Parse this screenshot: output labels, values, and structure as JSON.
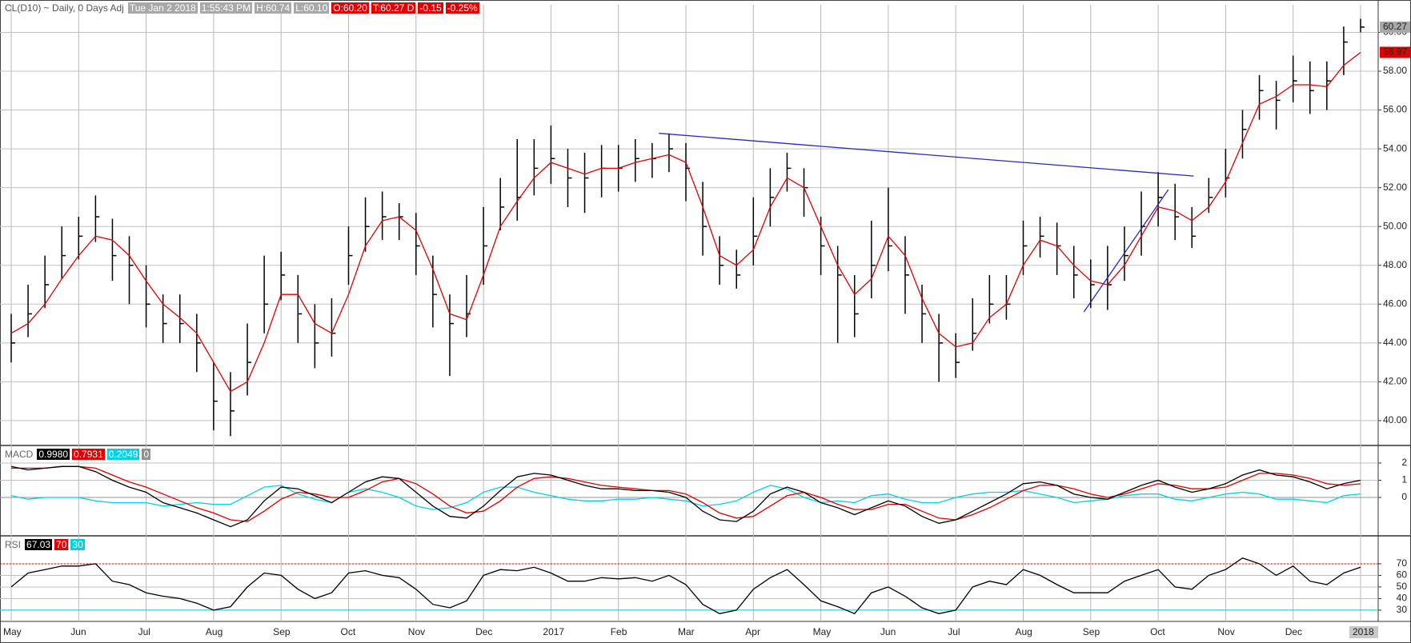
{
  "chart_data": [
    {
      "type": "ohlc",
      "title": "CL(D10) ~ Daily, 0 Days Adj",
      "info": [
        "Tue Jan 2 2018",
        "1:55:43 PM",
        "H:60.74",
        "L:60.10",
        "O:60.20",
        "T:60.27 D",
        "-0.15",
        "-0.25%"
      ],
      "categories": [
        "May",
        null,
        null,
        null,
        "Jun",
        null,
        null,
        null,
        "Jul",
        null,
        null,
        null,
        "Aug",
        null,
        null,
        null,
        "Sep",
        null,
        null,
        null,
        "Oct",
        null,
        null,
        null,
        "Nov",
        null,
        null,
        null,
        "Dec",
        null,
        null,
        null,
        "2017",
        null,
        null,
        null,
        "Feb",
        null,
        null,
        null,
        "Mar",
        null,
        null,
        null,
        "Apr",
        null,
        null,
        null,
        "May",
        null,
        null,
        null,
        "Jun",
        null,
        null,
        null,
        "Jul",
        null,
        null,
        null,
        "Aug",
        null,
        null,
        null,
        "Sep",
        null,
        null,
        null,
        "Oct",
        null,
        null,
        null,
        "Nov",
        null,
        null,
        null,
        "Dec",
        null,
        null,
        null,
        "2018"
      ],
      "high": [
        45.5,
        47,
        48.5,
        50,
        50.5,
        51.6,
        50.4,
        49.5,
        48,
        46.5,
        46.5,
        45.5,
        43,
        42.5,
        45,
        48.5,
        48.7,
        47.5,
        46,
        46.3,
        50,
        51.5,
        51.8,
        51.2,
        50.7,
        48.5,
        46.5,
        47.5,
        51,
        52.5,
        54.5,
        54.5,
        55.2,
        54,
        53.8,
        54.2,
        54.2,
        54.5,
        54.3,
        54.8,
        54.3,
        52.3,
        49.5,
        48.8,
        51.5,
        53,
        53.8,
        53,
        50.5,
        49,
        47.5,
        50.3,
        52,
        49.5,
        47,
        45.5,
        44.5,
        46.3,
        47.5,
        47.5,
        50.3,
        50.5,
        50.2,
        49,
        48.3,
        49,
        50,
        51.8,
        52.8,
        52.2,
        51,
        52.5,
        54,
        56,
        57.8,
        57.5,
        58.8,
        58.5,
        58.5,
        60.3,
        60.7
      ],
      "low": [
        43,
        44.3,
        45.8,
        47.3,
        48.3,
        49.2,
        47.2,
        46,
        44.8,
        44,
        44,
        42.5,
        39.5,
        39.2,
        41.3,
        44.5,
        46.2,
        44,
        42.7,
        43.3,
        47,
        48.7,
        49.3,
        49.3,
        47.5,
        44.8,
        42.3,
        44.3,
        47,
        49.8,
        50.3,
        51.6,
        52.2,
        51,
        50.7,
        51.5,
        51.8,
        52.3,
        52.5,
        52.8,
        51.3,
        48.5,
        47,
        46.8,
        48,
        50,
        51.8,
        50.5,
        47.5,
        44,
        44.3,
        46.3,
        47.7,
        45.5,
        44,
        42,
        42.2,
        43.6,
        45,
        45.2,
        47.5,
        48.4,
        47.5,
        46.3,
        45.8,
        45.7,
        47.2,
        48.5,
        50,
        49.3,
        48.9,
        50.7,
        51.5,
        53.5,
        55.5,
        55,
        56.4,
        55.8,
        56,
        57.8,
        60
      ],
      "close": [
        44,
        45.5,
        47,
        48.5,
        49.5,
        50.5,
        48.5,
        48,
        46,
        45,
        45,
        44,
        41,
        40.5,
        43,
        46,
        47.5,
        45.5,
        44,
        44.5,
        48.5,
        50,
        50.5,
        50.5,
        49,
        46.5,
        45,
        45.5,
        49,
        51,
        51.5,
        53,
        53.5,
        52.5,
        52.5,
        53,
        53,
        53.5,
        53.5,
        54,
        53,
        50,
        48,
        47.5,
        49.5,
        51.5,
        53,
        52,
        49,
        47.5,
        45.5,
        48,
        49,
        47.5,
        45.5,
        44,
        43,
        44.5,
        46,
        46,
        49,
        49.5,
        49,
        47.5,
        47,
        47,
        48.5,
        50,
        51.5,
        50.5,
        49.5,
        51.5,
        52.5,
        55,
        57,
        56.5,
        57.5,
        57,
        57.5,
        59.5,
        60.27
      ],
      "color": "#000000",
      "overlay": {
        "color": "#e00000",
        "values": [
          44.5,
          45,
          46,
          47.3,
          48.5,
          49.5,
          49.3,
          48.5,
          47.2,
          46,
          45.3,
          44.5,
          43,
          41.5,
          42,
          44,
          46.5,
          46.5,
          45,
          44.5,
          46.5,
          49,
          50.3,
          50.5,
          49.8,
          47.8,
          45.5,
          45.2,
          47.5,
          50,
          51.3,
          52.5,
          53.3,
          53,
          52.7,
          53,
          53,
          53.3,
          53.5,
          53.7,
          53.3,
          51,
          48.5,
          48,
          48.8,
          51,
          52.5,
          52,
          50,
          48,
          46.5,
          47.3,
          49.5,
          48.5,
          46.3,
          44.5,
          43.8,
          44,
          45.3,
          46,
          48,
          49.3,
          49,
          48,
          47.2,
          47,
          48,
          49.5,
          51,
          50.8,
          50.3,
          51,
          52.3,
          54.3,
          56.3,
          56.7,
          57.3,
          57.3,
          57.2,
          58.3,
          58.97
        ]
      },
      "trendlines": [
        {
          "color": "#2828c8",
          "x": [
            38.4,
            70.1
          ],
          "y": [
            54.8,
            52.6
          ]
        },
        {
          "color": "#2828c8",
          "x": [
            63.6,
            68.6
          ],
          "y": [
            45.6,
            51.9
          ]
        }
      ],
      "ylim": [
        38.72,
        61.42
      ],
      "yticks": [
        {
          "value": 40,
          "label": "40.00"
        },
        {
          "value": 42,
          "label": "42.00"
        },
        {
          "value": 44,
          "label": "44.00"
        },
        {
          "value": 46,
          "label": "46.00"
        },
        {
          "value": 48,
          "label": "48.00"
        },
        {
          "value": 50,
          "label": "50.00"
        },
        {
          "value": 52,
          "label": "52.00"
        },
        {
          "value": 54,
          "label": "54.00"
        },
        {
          "value": 56,
          "label": "56.00"
        },
        {
          "value": 58,
          "label": "58.00"
        },
        {
          "value": 60,
          "label": "60.00"
        }
      ],
      "grid": true
    },
    {
      "type": "line",
      "title": "MACD",
      "series": [
        {
          "name": "0.9980",
          "color": "#000000",
          "values": [
            1.8,
            1.6,
            1.7,
            1.8,
            1.8,
            1.5,
            1.0,
            0.6,
            0.3,
            -0.3,
            -0.6,
            -0.9,
            -1.3,
            -1.7,
            -1.3,
            -0.2,
            0.6,
            0.5,
            0.1,
            -0.3,
            0.3,
            0.9,
            1.2,
            1.1,
            0.3,
            -0.5,
            -1.1,
            -1.2,
            -0.5,
            0.4,
            1.2,
            1.4,
            1.3,
            1.0,
            0.7,
            0.5,
            0.5,
            0.4,
            0.4,
            0.3,
            0.0,
            -0.8,
            -1.3,
            -1.4,
            -0.8,
            0.2,
            0.6,
            0.3,
            -0.3,
            -0.6,
            -1.0,
            -0.6,
            -0.2,
            -0.5,
            -1.1,
            -1.5,
            -1.3,
            -0.8,
            -0.3,
            0.2,
            0.8,
            0.9,
            0.7,
            0.2,
            0.0,
            -0.1,
            0.3,
            0.7,
            1.0,
            0.6,
            0.3,
            0.5,
            0.8,
            1.3,
            1.6,
            1.3,
            1.2,
            0.9,
            0.5,
            0.8,
            0.998
          ]
        },
        {
          "name": "0.7931",
          "color": "#e00000",
          "values": [
            1.7,
            1.7,
            1.7,
            1.8,
            1.8,
            1.7,
            1.3,
            0.9,
            0.6,
            0.2,
            -0.2,
            -0.6,
            -0.9,
            -1.3,
            -1.4,
            -0.8,
            -0.1,
            0.3,
            0.2,
            0.0,
            0.0,
            0.4,
            0.9,
            1.1,
            0.8,
            0.2,
            -0.5,
            -0.9,
            -0.8,
            -0.2,
            0.6,
            1.1,
            1.2,
            1.1,
            0.9,
            0.7,
            0.6,
            0.5,
            0.4,
            0.4,
            0.2,
            -0.3,
            -0.9,
            -1.2,
            -1.1,
            -0.5,
            0.1,
            0.3,
            0.0,
            -0.4,
            -0.7,
            -0.7,
            -0.4,
            -0.4,
            -0.8,
            -1.2,
            -1.3,
            -1.0,
            -0.6,
            -0.1,
            0.4,
            0.7,
            0.7,
            0.5,
            0.2,
            0.0,
            0.2,
            0.5,
            0.8,
            0.7,
            0.5,
            0.5,
            0.6,
            1.0,
            1.4,
            1.4,
            1.3,
            1.1,
            0.8,
            0.7,
            0.7931
          ]
        },
        {
          "name": "0.2049",
          "color": "#00d2e6",
          "values": [
            0.1,
            -0.1,
            0,
            0,
            0,
            -0.2,
            -0.3,
            -0.3,
            -0.3,
            -0.5,
            -0.4,
            -0.3,
            -0.4,
            -0.4,
            0.1,
            0.6,
            0.7,
            0.2,
            -0.1,
            -0.3,
            0.3,
            0.5,
            0.3,
            0,
            -0.5,
            -0.7,
            -0.6,
            -0.3,
            0.3,
            0.6,
            0.6,
            0.3,
            0.1,
            -0.1,
            -0.2,
            -0.2,
            -0.1,
            -0.1,
            0,
            -0.1,
            -0.2,
            -0.5,
            -0.4,
            -0.2,
            0.3,
            0.7,
            0.5,
            0,
            -0.3,
            -0.2,
            -0.3,
            0.1,
            0.2,
            -0.1,
            -0.3,
            -0.3,
            0,
            0.2,
            0.3,
            0.3,
            0.4,
            0.2,
            0,
            -0.3,
            -0.2,
            -0.1,
            0.1,
            0.2,
            0.2,
            -0.1,
            -0.2,
            0,
            0.2,
            0.3,
            0.2,
            -0.1,
            -0.1,
            -0.2,
            -0.3,
            0.1,
            0.2049
          ]
        }
      ],
      "levels": [
        {
          "name": "0",
          "value": 0,
          "color": "#909090"
        }
      ],
      "ylim": [
        -2.23,
        3.02
      ],
      "yticks": [
        2,
        1,
        0
      ],
      "grid": true
    },
    {
      "type": "line",
      "title": "RSI",
      "series": [
        {
          "name": "67.03",
          "color": "#000000",
          "values": [
            50,
            62,
            65,
            68,
            68,
            70,
            55,
            52,
            45,
            42,
            40,
            36,
            30,
            33,
            50,
            62,
            60,
            48,
            40,
            45,
            62,
            64,
            60,
            58,
            48,
            35,
            32,
            38,
            60,
            65,
            64,
            67,
            62,
            55,
            55,
            58,
            57,
            58,
            55,
            60,
            52,
            35,
            27,
            30,
            48,
            58,
            65,
            52,
            38,
            33,
            27,
            45,
            50,
            42,
            32,
            27,
            30,
            50,
            55,
            52,
            65,
            60,
            52,
            45,
            45,
            45,
            55,
            60,
            65,
            50,
            48,
            60,
            65,
            75,
            70,
            60,
            68,
            55,
            52,
            62,
            67.03
          ]
        }
      ],
      "levels": [
        {
          "name": "70",
          "value": 70,
          "color": "#e00000",
          "dashed": true
        },
        {
          "name": "30",
          "value": 30,
          "color": "#00d2e6"
        }
      ],
      "ylim": [
        20.3,
        94.1
      ],
      "yticks": [
        70,
        60,
        50,
        40,
        30
      ],
      "grid": true
    }
  ]
}
